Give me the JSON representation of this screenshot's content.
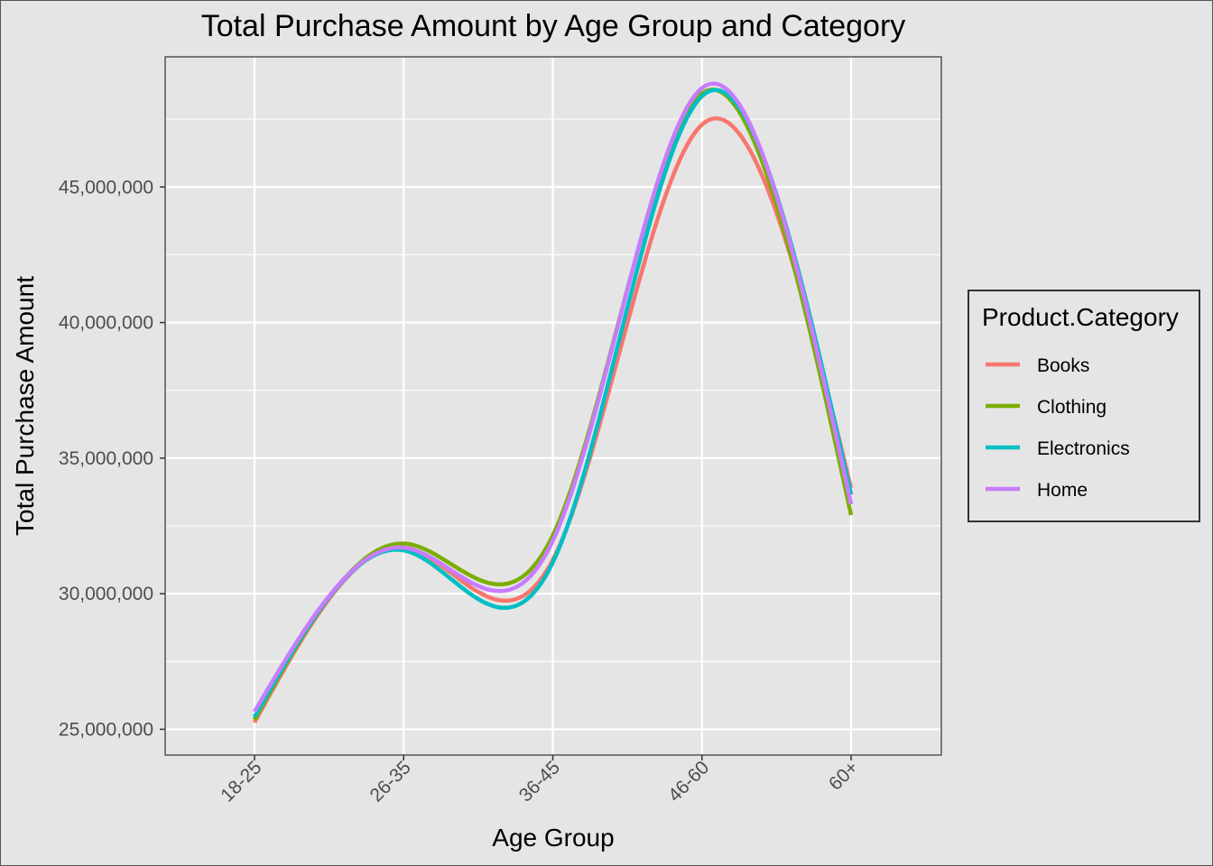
{
  "chart_data": {
    "type": "line",
    "title": "Total Purchase Amount by Age Group and Category",
    "xlabel": "Age Group",
    "ylabel": "Total Purchase Amount",
    "categories": [
      "18-25",
      "26-35",
      "36-45",
      "46-60",
      "60+"
    ],
    "yticks": [
      25000000,
      30000000,
      35000000,
      40000000,
      45000000
    ],
    "ytick_labels": [
      "25,000,000",
      "30,000,000",
      "35,000,000",
      "40,000,000",
      "45,000,000"
    ],
    "ylim": [
      24050000,
      49800000
    ],
    "smooth": true,
    "grid": true,
    "legend": {
      "title": "Product.Category",
      "position": "right"
    },
    "series": [
      {
        "name": "Books",
        "color": "#F8766D",
        "values": [
          25250000,
          31700000,
          31250000,
          47300000,
          33900000
        ]
      },
      {
        "name": "Clothing",
        "color": "#7CAE00",
        "values": [
          25350000,
          31850000,
          32150000,
          48450000,
          32900000
        ]
      },
      {
        "name": "Electronics",
        "color": "#00BFC4",
        "values": [
          25450000,
          31600000,
          31150000,
          48350000,
          33650000
        ]
      },
      {
        "name": "Home",
        "color": "#C77CFF",
        "values": [
          25650000,
          31700000,
          31950000,
          48650000,
          33300000
        ]
      }
    ]
  }
}
